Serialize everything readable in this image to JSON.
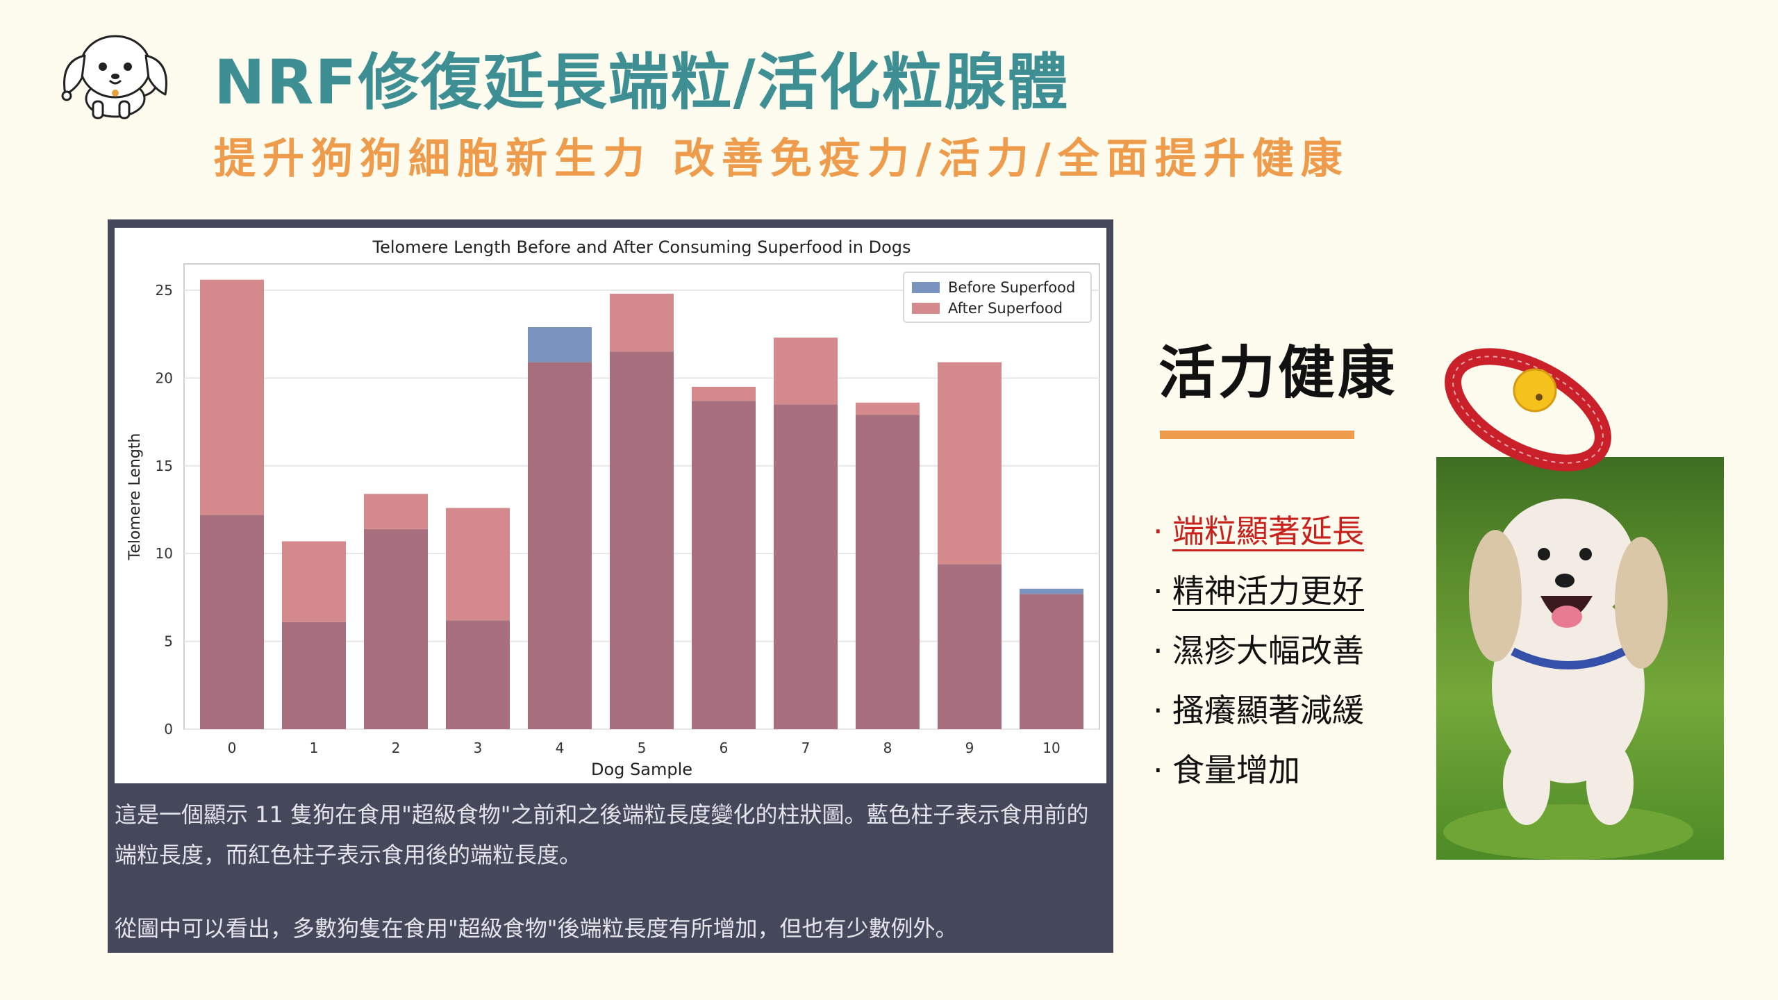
{
  "header": {
    "title": "NRF修復延長端粒/活化粒腺體",
    "subtitle": "提升狗狗細胞新生力  改善免疫力/活力/全面提升健康"
  },
  "chart_data": {
    "type": "bar",
    "title": "Telomere Length Before and After Consuming Superfood in Dogs",
    "xlabel": "Dog Sample",
    "ylabel": "Telomere Length",
    "categories": [
      "0",
      "1",
      "2",
      "3",
      "4",
      "5",
      "6",
      "7",
      "8",
      "9",
      "10"
    ],
    "ylim": [
      0,
      26.5
    ],
    "yticks": [
      0,
      5,
      10,
      15,
      20,
      25
    ],
    "grid": true,
    "legend_position": "top-right",
    "series": [
      {
        "name": "Before Superfood",
        "color": "#7b94bf",
        "values": [
          12.2,
          6.1,
          11.4,
          6.2,
          22.9,
          21.5,
          18.7,
          18.5,
          17.9,
          9.4,
          8.0
        ]
      },
      {
        "name": "After Superfood",
        "color": "#d48a8c",
        "values": [
          25.6,
          10.7,
          13.4,
          12.6,
          20.9,
          24.8,
          19.5,
          22.3,
          18.6,
          20.9,
          7.7
        ]
      }
    ]
  },
  "caption": {
    "line1": "這是一個顯示 11 隻狗在食用\"超級食物\"之前和之後端粒長度變化的柱狀圖。藍色柱子表示食用前的端粒長度，而紅色柱子表示食用後的端粒長度。",
    "line2": "從圖中可以看出，多數狗隻在食用\"超級食物\"後端粒長度有所增加，但也有少數例外。"
  },
  "side": {
    "heading": "活力健康",
    "bullet_mark": "·",
    "bullets": [
      "端粒顯著延長",
      "精神活力更好",
      "濕疹大幅改善",
      "搔癢顯著減緩",
      "食量增加"
    ]
  },
  "colors": {
    "title": "#3e8f94",
    "subtitle": "#ee9b4c",
    "panel": "#45475a",
    "bar_before": "#7b94bf",
    "bar_after": "#d48a8c",
    "bar_overlap": "#a8707e",
    "highlight_red": "#c8201c"
  },
  "icons": {
    "logo": "cartoon-dog-icon",
    "photo": "running-dog-photo",
    "collar": "red-collar-with-bell"
  }
}
